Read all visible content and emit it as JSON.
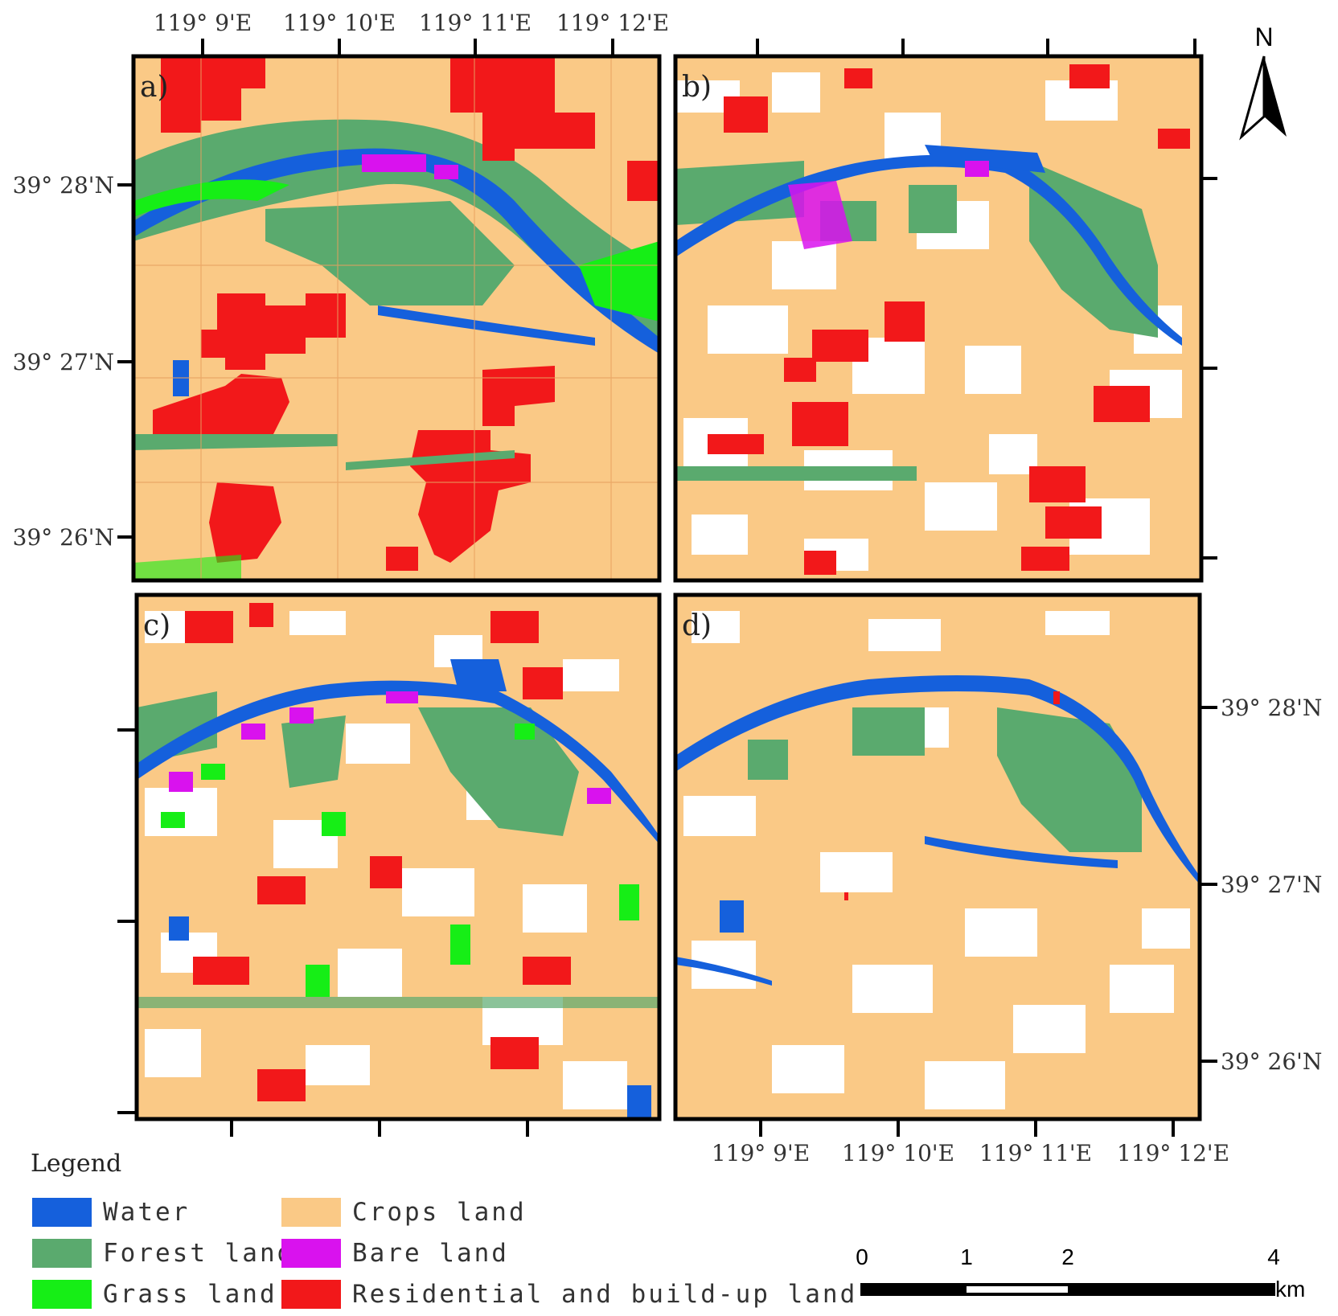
{
  "top_lon_labels": [
    "119° 9'E",
    "119° 10'E",
    "119° 11'E",
    "119° 12'E"
  ],
  "bottom_lon_labels": [
    "119° 9'E",
    "119° 10'E",
    "119° 11'E",
    "119° 12'E"
  ],
  "left_lat_labels": [
    "39° 28'N",
    "39° 27'N",
    "39° 26'N"
  ],
  "right_lat_labels": [
    "39° 28'N",
    "39° 27'N",
    "39° 26'N"
  ],
  "panels": [
    {
      "id": "a",
      "label": "a)"
    },
    {
      "id": "b",
      "label": "b)"
    },
    {
      "id": "c",
      "label": "c)"
    },
    {
      "id": "d",
      "label": "d)"
    }
  ],
  "legend": {
    "title": "Legend",
    "items": [
      {
        "label": "Water",
        "color": "#1560dc"
      },
      {
        "label": "Forest land",
        "color": "#5aaa6e"
      },
      {
        "label": "Grass land",
        "color": "#16ee16"
      },
      {
        "label": "Crops land",
        "color": "#fac986"
      },
      {
        "label": "Bare land",
        "color": "#d912ee"
      },
      {
        "label": "Residential and build-up land",
        "color": "#f2181a"
      }
    ]
  },
  "scale_bar": {
    "ticks": [
      "0",
      "1",
      "2",
      "4"
    ],
    "unit": "km"
  },
  "north_arrow": {
    "label": "N"
  }
}
